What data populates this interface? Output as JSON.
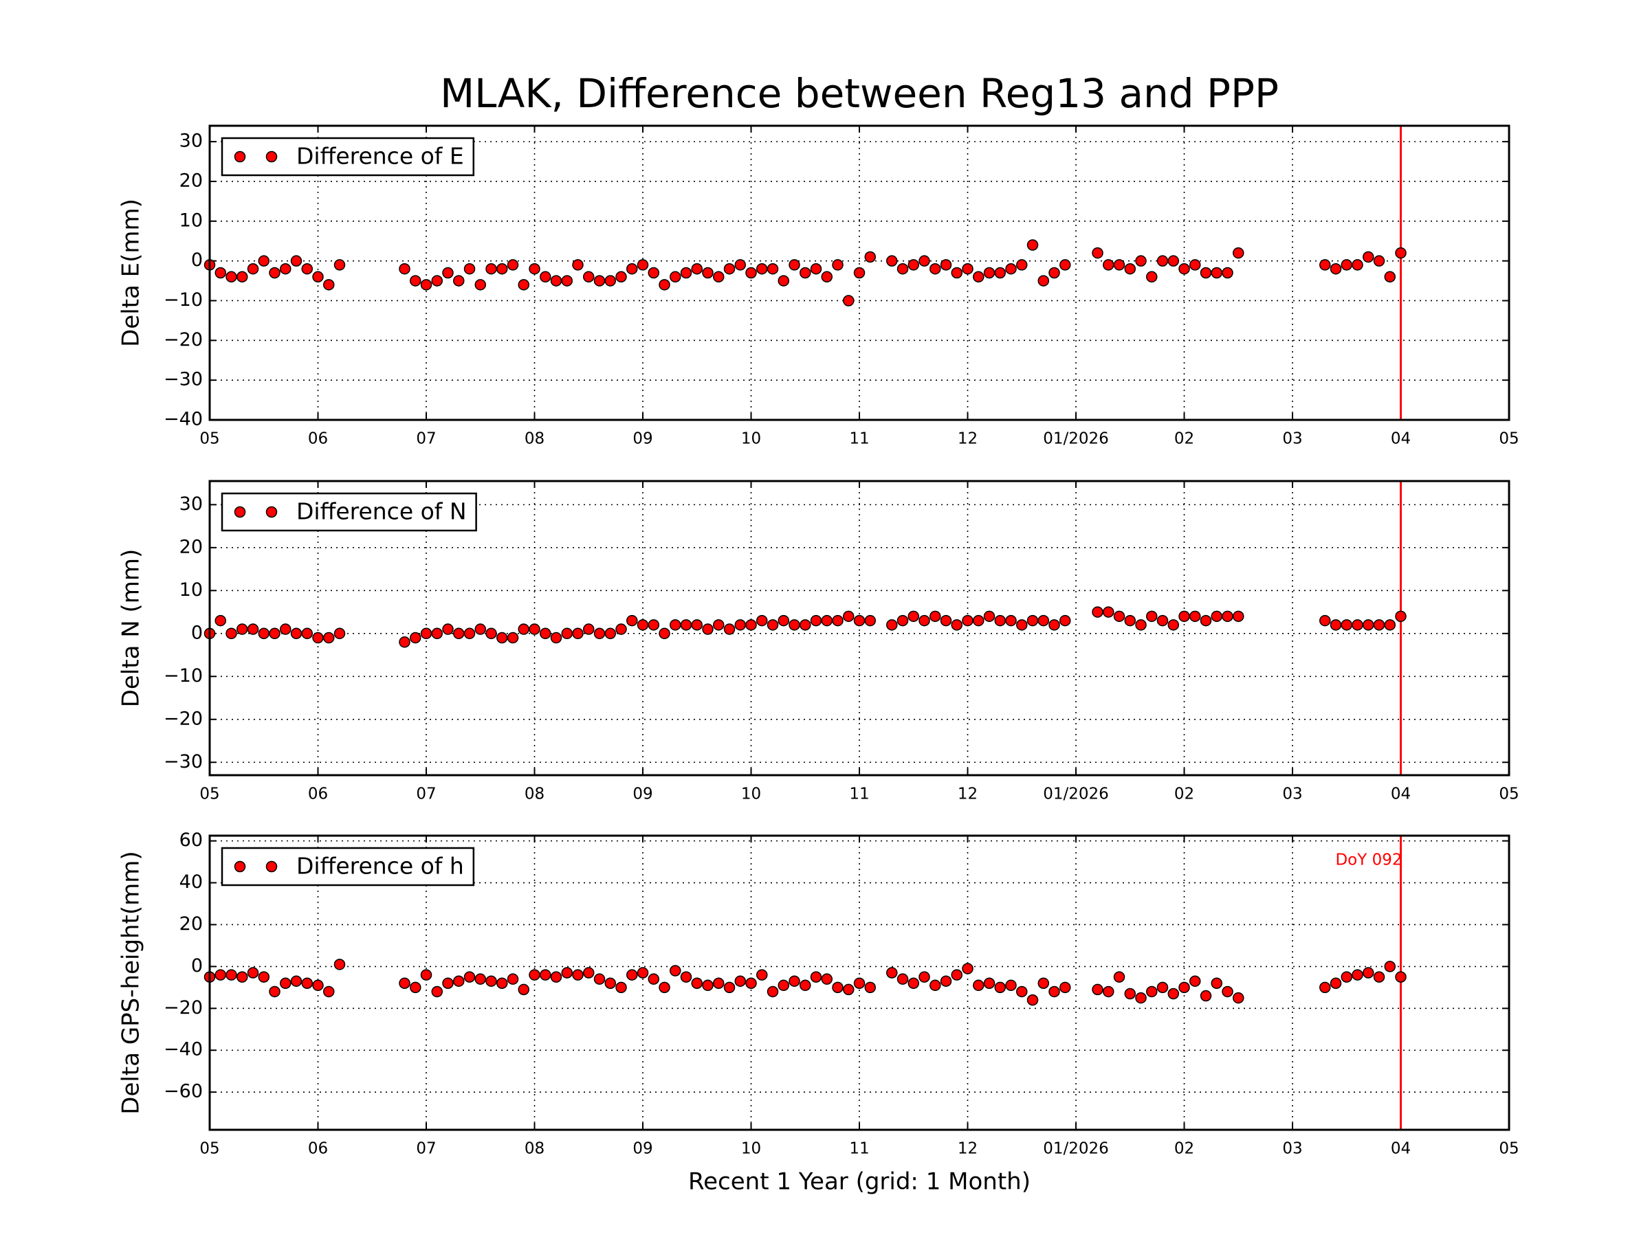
{
  "chart_data": [
    {
      "type": "scatter",
      "title": "MLAK, Difference between Reg13 and PPP",
      "ylabel": "Delta E(mm)",
      "x": [
        0,
        0.1,
        0.2,
        0.3,
        0.4,
        0.5,
        0.6,
        0.7,
        0.8,
        0.9,
        1.0,
        1.1,
        1.2,
        1.8,
        1.9,
        2.0,
        2.1,
        2.2,
        2.3,
        2.4,
        2.5,
        2.6,
        2.7,
        2.8,
        2.9,
        3.0,
        3.1,
        3.2,
        3.3,
        3.4,
        3.5,
        3.6,
        3.7,
        3.8,
        3.9,
        4.0,
        4.1,
        4.2,
        4.3,
        4.4,
        4.5,
        4.6,
        4.7,
        4.8,
        4.9,
        5.0,
        5.1,
        5.2,
        5.3,
        5.4,
        5.5,
        5.6,
        5.7,
        5.8,
        5.9,
        6.0,
        6.1,
        6.3,
        6.4,
        6.5,
        6.6,
        6.7,
        6.8,
        6.9,
        7.0,
        7.1,
        7.2,
        7.3,
        7.4,
        7.5,
        7.6,
        7.7,
        7.8,
        7.9,
        8.2,
        8.3,
        8.4,
        8.5,
        8.6,
        8.7,
        8.8,
        8.9,
        9.0,
        9.1,
        9.2,
        9.3,
        9.4,
        9.5,
        10.3,
        10.4,
        10.5,
        10.6,
        10.7,
        10.8,
        10.9,
        11.0
      ],
      "series": [
        {
          "name": "Difference of E",
          "color": "#ff0000",
          "values": [
            -1,
            -3,
            -4,
            -4,
            -2,
            0,
            -3,
            -2,
            0,
            -2,
            -4,
            -6,
            -1,
            -2,
            -5,
            -6,
            -5,
            -3,
            -5,
            -2,
            -6,
            -2,
            -2,
            -1,
            -6,
            -2,
            -4,
            -5,
            -5,
            -1,
            -4,
            -5,
            -5,
            -4,
            -2,
            -1,
            -3,
            -6,
            -4,
            -3,
            -2,
            -3,
            -4,
            -2,
            -1,
            -3,
            -2,
            -2,
            -5,
            -1,
            -3,
            -2,
            -4,
            -1,
            -10,
            -3,
            1,
            0,
            -2,
            -1,
            0,
            -2,
            -1,
            -3,
            -2,
            -4,
            -3,
            -3,
            -2,
            -1,
            4,
            -5,
            -3,
            -1,
            2,
            -1,
            -1,
            -2,
            0,
            -4,
            0,
            0,
            -2,
            -1,
            -3,
            -3,
            -3,
            2,
            -1,
            -2,
            -1,
            -1,
            1,
            0,
            -4,
            2
          ]
        }
      ],
      "xlim": [
        0,
        12
      ],
      "xticks": [
        {
          "value": 0,
          "label": "05"
        },
        {
          "value": 1,
          "label": "06"
        },
        {
          "value": 2,
          "label": "07"
        },
        {
          "value": 3,
          "label": "08"
        },
        {
          "value": 4,
          "label": "09"
        },
        {
          "value": 5,
          "label": "10"
        },
        {
          "value": 6,
          "label": "11"
        },
        {
          "value": 7,
          "label": "12"
        },
        {
          "value": 8,
          "label": "01/2026"
        },
        {
          "value": 9,
          "label": "02"
        },
        {
          "value": 10,
          "label": "03"
        },
        {
          "value": 11,
          "label": "04"
        },
        {
          "value": 12,
          "label": "05"
        }
      ],
      "ylim": [
        -40,
        34
      ],
      "yticks": [
        {
          "value": -40,
          "label": "−40"
        },
        {
          "value": -30,
          "label": "−30"
        },
        {
          "value": -20,
          "label": "−20"
        },
        {
          "value": -10,
          "label": "−10"
        },
        0,
        10,
        20,
        30
      ],
      "grid": true,
      "legend": "upper left",
      "marker_line": 11,
      "marker_line_color": "#ff0000"
    },
    {
      "type": "scatter",
      "ylabel": "Delta N (mm)",
      "x": [
        0,
        0.1,
        0.2,
        0.3,
        0.4,
        0.5,
        0.6,
        0.7,
        0.8,
        0.9,
        1.0,
        1.1,
        1.2,
        1.8,
        1.9,
        2.0,
        2.1,
        2.2,
        2.3,
        2.4,
        2.5,
        2.6,
        2.7,
        2.8,
        2.9,
        3.0,
        3.1,
        3.2,
        3.3,
        3.4,
        3.5,
        3.6,
        3.7,
        3.8,
        3.9,
        4.0,
        4.1,
        4.2,
        4.3,
        4.4,
        4.5,
        4.6,
        4.7,
        4.8,
        4.9,
        5.0,
        5.1,
        5.2,
        5.3,
        5.4,
        5.5,
        5.6,
        5.7,
        5.8,
        5.9,
        6.0,
        6.1,
        6.3,
        6.4,
        6.5,
        6.6,
        6.7,
        6.8,
        6.9,
        7.0,
        7.1,
        7.2,
        7.3,
        7.4,
        7.5,
        7.6,
        7.7,
        7.8,
        7.9,
        8.2,
        8.3,
        8.4,
        8.5,
        8.6,
        8.7,
        8.8,
        8.9,
        9.0,
        9.1,
        9.2,
        9.3,
        9.4,
        9.5,
        10.3,
        10.4,
        10.5,
        10.6,
        10.7,
        10.8,
        10.9,
        11.0
      ],
      "series": [
        {
          "name": "Difference of N",
          "color": "#ff0000",
          "values": [
            0,
            3,
            0,
            1,
            1,
            0,
            0,
            1,
            0,
            0,
            -1,
            -1,
            0,
            -2,
            -1,
            0,
            0,
            1,
            0,
            0,
            1,
            0,
            -1,
            -1,
            1,
            1,
            0,
            -1,
            0,
            0,
            1,
            0,
            0,
            1,
            3,
            2,
            2,
            0,
            2,
            2,
            2,
            1,
            2,
            1,
            2,
            2,
            3,
            2,
            3,
            2,
            2,
            3,
            3,
            3,
            4,
            3,
            3,
            2,
            3,
            4,
            3,
            4,
            3,
            2,
            3,
            3,
            4,
            3,
            3,
            2,
            3,
            3,
            2,
            3,
            5,
            5,
            4,
            3,
            2,
            4,
            3,
            2,
            4,
            4,
            3,
            4,
            4,
            4,
            3,
            2,
            2,
            2,
            2,
            2,
            2,
            4
          ]
        }
      ],
      "xlim": [
        0,
        12
      ],
      "xticks": [
        {
          "value": 0,
          "label": "05"
        },
        {
          "value": 1,
          "label": "06"
        },
        {
          "value": 2,
          "label": "07"
        },
        {
          "value": 3,
          "label": "08"
        },
        {
          "value": 4,
          "label": "09"
        },
        {
          "value": 5,
          "label": "10"
        },
        {
          "value": 6,
          "label": "11"
        },
        {
          "value": 7,
          "label": "12"
        },
        {
          "value": 8,
          "label": "01/2026"
        },
        {
          "value": 9,
          "label": "02"
        },
        {
          "value": 10,
          "label": "03"
        },
        {
          "value": 11,
          "label": "04"
        },
        {
          "value": 12,
          "label": "05"
        }
      ],
      "ylim": [
        -33,
        35.5
      ],
      "yticks": [
        {
          "value": -30,
          "label": "−30"
        },
        {
          "value": -20,
          "label": "−20"
        },
        {
          "value": -10,
          "label": "−10"
        },
        0,
        10,
        20,
        30
      ],
      "grid": true,
      "legend": "upper left",
      "marker_line": 11,
      "marker_line_color": "#ff0000"
    },
    {
      "type": "scatter",
      "ylabel": "Delta GPS-height(mm)",
      "xlabel": "Recent 1 Year (grid: 1 Month)",
      "annotation": "DoY 092",
      "x": [
        0,
        0.1,
        0.2,
        0.3,
        0.4,
        0.5,
        0.6,
        0.7,
        0.8,
        0.9,
        1.0,
        1.1,
        1.2,
        1.8,
        1.9,
        2.0,
        2.1,
        2.2,
        2.3,
        2.4,
        2.5,
        2.6,
        2.7,
        2.8,
        2.9,
        3.0,
        3.1,
        3.2,
        3.3,
        3.4,
        3.5,
        3.6,
        3.7,
        3.8,
        3.9,
        4.0,
        4.1,
        4.2,
        4.3,
        4.4,
        4.5,
        4.6,
        4.7,
        4.8,
        4.9,
        5.0,
        5.1,
        5.2,
        5.3,
        5.4,
        5.5,
        5.6,
        5.7,
        5.8,
        5.9,
        6.0,
        6.1,
        6.3,
        6.4,
        6.5,
        6.6,
        6.7,
        6.8,
        6.9,
        7.0,
        7.1,
        7.2,
        7.3,
        7.4,
        7.5,
        7.6,
        7.7,
        7.8,
        7.9,
        8.2,
        8.3,
        8.4,
        8.5,
        8.6,
        8.7,
        8.8,
        8.9,
        9.0,
        9.1,
        9.2,
        9.3,
        9.4,
        9.5,
        10.3,
        10.4,
        10.5,
        10.6,
        10.7,
        10.8,
        10.9,
        11.0
      ],
      "series": [
        {
          "name": "Difference of h",
          "color": "#ff0000",
          "values": [
            -5,
            -4,
            -4,
            -5,
            -3,
            -5,
            -12,
            -8,
            -7,
            -8,
            -9,
            -12,
            1,
            -8,
            -10,
            -4,
            -12,
            -8,
            -7,
            -5,
            -6,
            -7,
            -8,
            -6,
            -11,
            -4,
            -4,
            -5,
            -3,
            -4,
            -3,
            -6,
            -8,
            -10,
            -4,
            -3,
            -6,
            -10,
            -2,
            -5,
            -8,
            -9,
            -8,
            -10,
            -7,
            -8,
            -4,
            -12,
            -9,
            -7,
            -9,
            -5,
            -6,
            -10,
            -11,
            -8,
            -10,
            -3,
            -6,
            -8,
            -5,
            -9,
            -7,
            -4,
            -1,
            -9,
            -8,
            -10,
            -9,
            -12,
            -16,
            -8,
            -12,
            -10,
            -11,
            -12,
            -5,
            -13,
            -15,
            -12,
            -10,
            -13,
            -10,
            -7,
            -14,
            -8,
            -12,
            -15,
            -10,
            -8,
            -5,
            -4,
            -3,
            -5,
            0,
            -5
          ]
        }
      ],
      "xlim": [
        0,
        12
      ],
      "xticks": [
        {
          "value": 0,
          "label": "05"
        },
        {
          "value": 1,
          "label": "06"
        },
        {
          "value": 2,
          "label": "07"
        },
        {
          "value": 3,
          "label": "08"
        },
        {
          "value": 4,
          "label": "09"
        },
        {
          "value": 5,
          "label": "10"
        },
        {
          "value": 6,
          "label": "11"
        },
        {
          "value": 7,
          "label": "12"
        },
        {
          "value": 8,
          "label": "01/2026"
        },
        {
          "value": 9,
          "label": "02"
        },
        {
          "value": 10,
          "label": "03"
        },
        {
          "value": 11,
          "label": "04"
        },
        {
          "value": 12,
          "label": "05"
        }
      ],
      "ylim": [
        -78,
        62.5
      ],
      "yticks": [
        {
          "value": -60,
          "label": "−60"
        },
        {
          "value": -40,
          "label": "−40"
        },
        {
          "value": -20,
          "label": "−20"
        },
        0,
        20,
        40,
        60
      ],
      "grid": true,
      "legend": "upper left",
      "marker_line": 11,
      "marker_line_color": "#ff0000"
    }
  ]
}
